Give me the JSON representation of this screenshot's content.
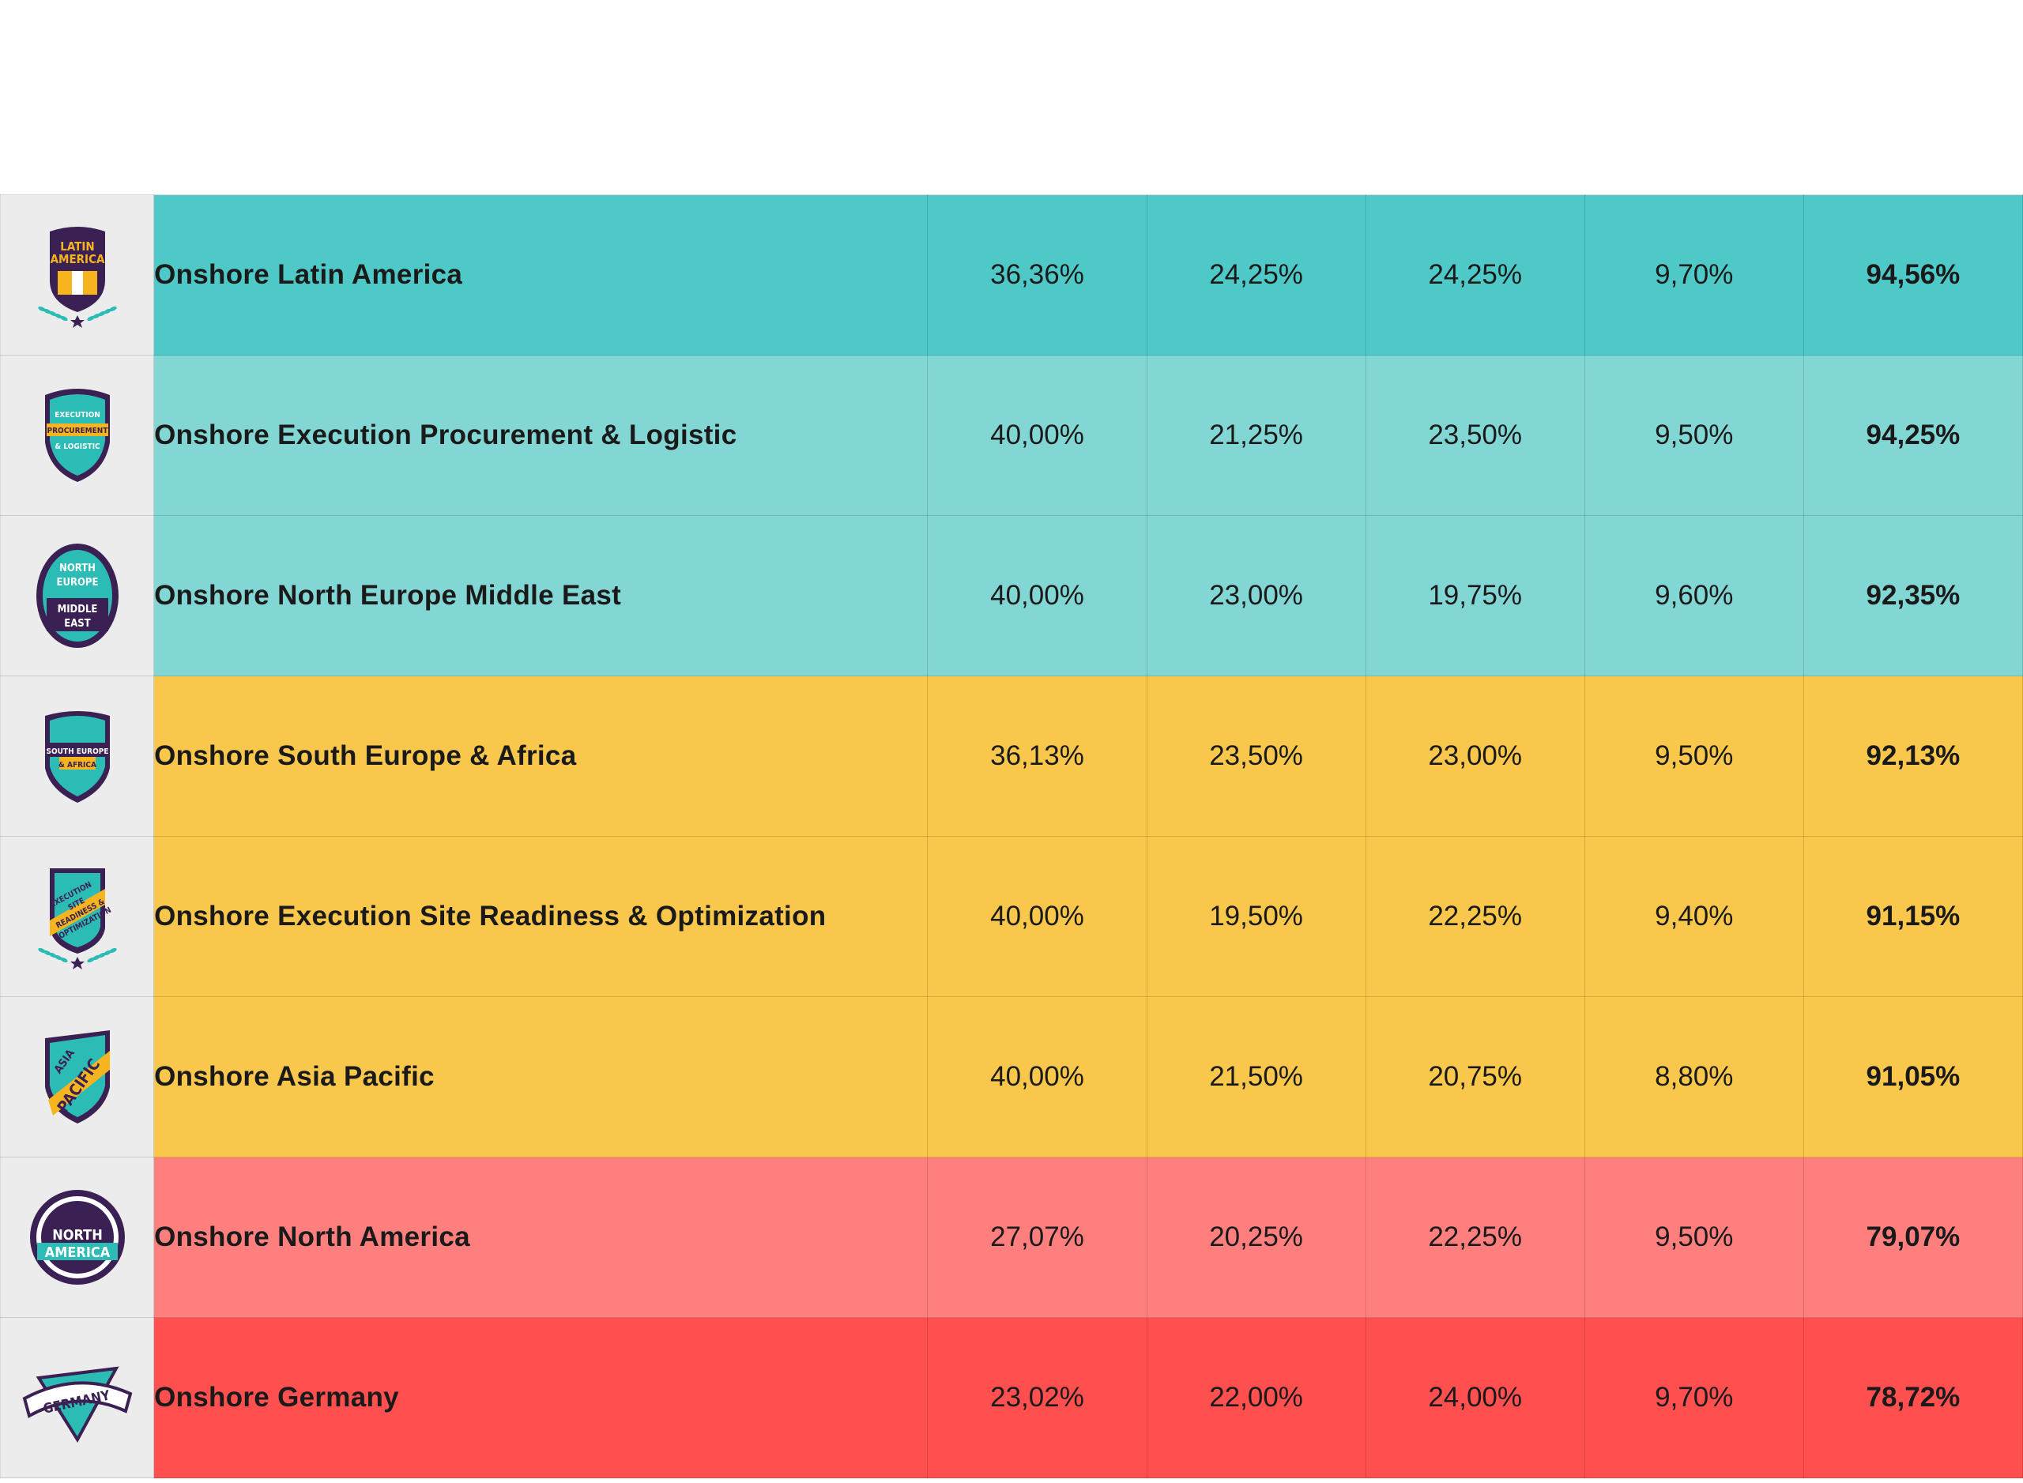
{
  "header": {
    "columns": [
      {
        "label": ""
      },
      {
        "label": ""
      },
      {
        "label": ""
      },
      {
        "label": ""
      },
      {
        "label": ""
      }
    ]
  },
  "colors": {
    "teal_dark": "#4ec9c7",
    "teal_light": "#82d7d4",
    "yellow": "#f8c74b",
    "pink": "#ff7f7f",
    "red": "#ff4f4f"
  },
  "rows": [
    {
      "badge_icon": "latin-america-badge-icon",
      "badge_text": [
        "LATIN",
        "AMERICA"
      ],
      "name": "Onshore Latin America",
      "values": [
        "36,36%",
        "24,25%",
        "24,25%",
        "9,70%"
      ],
      "total": "94,56%",
      "color": "#4ec9c7"
    },
    {
      "badge_icon": "execution-procurement-logistic-badge-icon",
      "badge_text": [
        "EXECUTION",
        "PROCUREMENT",
        "& LOGISTIC"
      ],
      "name": "Onshore Execution Procurement & Logistic",
      "values": [
        "40,00%",
        "21,25%",
        "23,50%",
        "9,50%"
      ],
      "total": "94,25%",
      "color": "#82d7d4"
    },
    {
      "badge_icon": "north-europe-middle-east-badge-icon",
      "badge_text": [
        "NORTH",
        "EUROPE",
        "MIDDLE",
        "EAST"
      ],
      "name": "Onshore North Europe Middle East",
      "values": [
        "40,00%",
        "23,00%",
        "19,75%",
        "9,60%"
      ],
      "total": "92,35%",
      "color": "#82d7d4"
    },
    {
      "badge_icon": "south-europe-africa-badge-icon",
      "badge_text": [
        "SOUTH EUROPE",
        "& AFRICA"
      ],
      "name": "Onshore South Europe & Africa",
      "values": [
        "36,13%",
        "23,50%",
        "23,00%",
        "9,50%"
      ],
      "total": "92,13%",
      "color": "#f8c74b"
    },
    {
      "badge_icon": "execution-site-readiness-optimization-badge-icon",
      "badge_text": [
        "EXECUTION",
        "SITE",
        "READINESS &",
        "OPTIMIZATION"
      ],
      "name": "Onshore Execution Site Readiness & Optimization",
      "values": [
        "40,00%",
        "19,50%",
        "22,25%",
        "9,40%"
      ],
      "total": "91,15%",
      "color": "#f8c74b"
    },
    {
      "badge_icon": "asia-pacific-badge-icon",
      "badge_text": [
        "ASIA",
        "PACIFIC"
      ],
      "name": "Onshore Asia Pacific",
      "values": [
        "40,00%",
        "21,50%",
        "20,75%",
        "8,80%"
      ],
      "total": "91,05%",
      "color": "#f8c74b"
    },
    {
      "badge_icon": "north-america-badge-icon",
      "badge_text": [
        "NORTH",
        "AMERICA"
      ],
      "name": "Onshore North America",
      "values": [
        "27,07%",
        "20,25%",
        "22,25%",
        "9,50%"
      ],
      "total": "79,07%",
      "color": "#ff7f7f"
    },
    {
      "badge_icon": "germany-badge-icon",
      "badge_text": [
        "GERMANY"
      ],
      "name": "Onshore Germany",
      "values": [
        "23,02%",
        "22,00%",
        "24,00%",
        "9,70%"
      ],
      "total": "78,72%",
      "color": "#ff4f4f"
    }
  ]
}
